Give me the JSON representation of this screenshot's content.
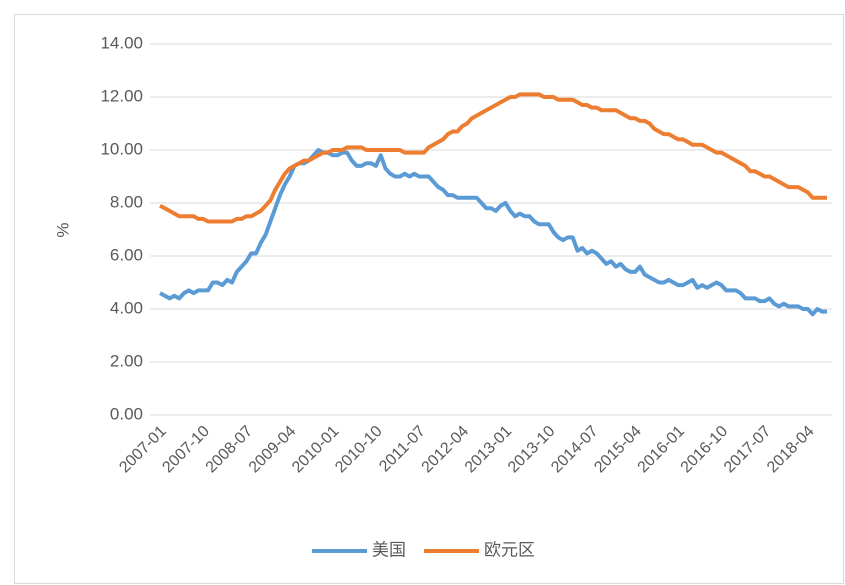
{
  "chart_data": {
    "type": "line",
    "y_label": "%",
    "categories": [
      "2007-01",
      null,
      null,
      null,
      null,
      null,
      null,
      null,
      null,
      "2007-10",
      null,
      null,
      null,
      null,
      null,
      null,
      null,
      null,
      "2008-07",
      null,
      null,
      null,
      null,
      null,
      null,
      null,
      null,
      "2009-04",
      null,
      null,
      null,
      null,
      null,
      null,
      null,
      null,
      "2010-01",
      null,
      null,
      null,
      null,
      null,
      null,
      null,
      null,
      "2010-10",
      null,
      null,
      null,
      null,
      null,
      null,
      null,
      null,
      "2011-07",
      null,
      null,
      null,
      null,
      null,
      null,
      null,
      null,
      "2012-04",
      null,
      null,
      null,
      null,
      null,
      null,
      null,
      null,
      "2013-01",
      null,
      null,
      null,
      null,
      null,
      null,
      null,
      null,
      "2013-10",
      null,
      null,
      null,
      null,
      null,
      null,
      null,
      null,
      "2014-07",
      null,
      null,
      null,
      null,
      null,
      null,
      null,
      null,
      "2015-04",
      null,
      null,
      null,
      null,
      null,
      null,
      null,
      null,
      "2016-01",
      null,
      null,
      null,
      null,
      null,
      null,
      null,
      null,
      "2016-10",
      null,
      null,
      null,
      null,
      null,
      null,
      null,
      null,
      "2017-07",
      null,
      null,
      null,
      null,
      null,
      null,
      null,
      null,
      "2018-04",
      null,
      null,
      null,
      null
    ],
    "series": [
      {
        "name": "美国",
        "color": "#5b9bd5",
        "values": [
          4.6,
          4.5,
          4.4,
          4.5,
          4.4,
          4.6,
          4.7,
          4.6,
          4.7,
          4.7,
          4.7,
          5.0,
          5.0,
          4.9,
          5.1,
          5.0,
          5.4,
          5.6,
          5.8,
          6.1,
          6.1,
          6.5,
          6.8,
          7.3,
          7.8,
          8.3,
          8.7,
          9.0,
          9.4,
          9.5,
          9.5,
          9.6,
          9.8,
          10.0,
          9.9,
          9.9,
          9.8,
          9.8,
          9.9,
          9.9,
          9.6,
          9.4,
          9.4,
          9.5,
          9.5,
          9.4,
          9.8,
          9.3,
          9.1,
          9.0,
          9.0,
          9.1,
          9.0,
          9.1,
          9.0,
          9.0,
          9.0,
          8.8,
          8.6,
          8.5,
          8.3,
          8.3,
          8.2,
          8.2,
          8.2,
          8.2,
          8.2,
          8.0,
          7.8,
          7.8,
          7.7,
          7.9,
          8.0,
          7.7,
          7.5,
          7.6,
          7.5,
          7.5,
          7.3,
          7.2,
          7.2,
          7.2,
          6.9,
          6.7,
          6.6,
          6.7,
          6.7,
          6.2,
          6.3,
          6.1,
          6.2,
          6.1,
          5.9,
          5.7,
          5.8,
          5.6,
          5.7,
          5.5,
          5.4,
          5.4,
          5.6,
          5.3,
          5.2,
          5.1,
          5.0,
          5.0,
          5.1,
          5.0,
          4.9,
          4.9,
          5.0,
          5.1,
          4.8,
          4.9,
          4.8,
          4.9,
          5.0,
          4.9,
          4.7,
          4.7,
          4.7,
          4.6,
          4.4,
          4.4,
          4.4,
          4.3,
          4.3,
          4.4,
          4.2,
          4.1,
          4.2,
          4.1,
          4.1,
          4.1,
          4.0,
          4.0,
          3.8,
          4.0,
          3.9,
          3.9
        ]
      },
      {
        "name": "欧元区",
        "color": "#ed7d31",
        "values": [
          7.9,
          7.8,
          7.7,
          7.6,
          7.5,
          7.5,
          7.5,
          7.5,
          7.4,
          7.4,
          7.3,
          7.3,
          7.3,
          7.3,
          7.3,
          7.3,
          7.4,
          7.4,
          7.5,
          7.5,
          7.6,
          7.7,
          7.9,
          8.1,
          8.5,
          8.8,
          9.1,
          9.3,
          9.4,
          9.5,
          9.6,
          9.6,
          9.7,
          9.8,
          9.9,
          9.9,
          10.0,
          10.0,
          10.0,
          10.1,
          10.1,
          10.1,
          10.1,
          10.0,
          10.0,
          10.0,
          10.0,
          10.0,
          10.0,
          10.0,
          10.0,
          9.9,
          9.9,
          9.9,
          9.9,
          9.9,
          10.1,
          10.2,
          10.3,
          10.4,
          10.6,
          10.7,
          10.7,
          10.9,
          11.0,
          11.2,
          11.3,
          11.4,
          11.5,
          11.6,
          11.7,
          11.8,
          11.9,
          12.0,
          12.0,
          12.1,
          12.1,
          12.1,
          12.1,
          12.1,
          12.0,
          12.0,
          12.0,
          11.9,
          11.9,
          11.9,
          11.9,
          11.8,
          11.7,
          11.7,
          11.6,
          11.6,
          11.5,
          11.5,
          11.5,
          11.5,
          11.4,
          11.3,
          11.2,
          11.2,
          11.1,
          11.1,
          11.0,
          10.8,
          10.7,
          10.6,
          10.6,
          10.5,
          10.4,
          10.4,
          10.3,
          10.2,
          10.2,
          10.2,
          10.1,
          10.0,
          9.9,
          9.9,
          9.8,
          9.7,
          9.6,
          9.5,
          9.4,
          9.2,
          9.2,
          9.1,
          9.0,
          9.0,
          8.9,
          8.8,
          8.7,
          8.6,
          8.6,
          8.6,
          8.5,
          8.4,
          8.2,
          8.2,
          8.2,
          8.2
        ]
      }
    ],
    "ylim": [
      0,
      14
    ],
    "yticks": [
      {
        "value": 0,
        "label": "0.00"
      },
      {
        "value": 2,
        "label": "2.00"
      },
      {
        "value": 4,
        "label": "4.00"
      },
      {
        "value": 6,
        "label": "6.00"
      },
      {
        "value": 8,
        "label": "8.00"
      },
      {
        "value": 10,
        "label": "10.00"
      },
      {
        "value": 12,
        "label": "12.00"
      },
      {
        "value": 14,
        "label": "14.00"
      }
    ],
    "grid": true,
    "legend": "bottom"
  }
}
